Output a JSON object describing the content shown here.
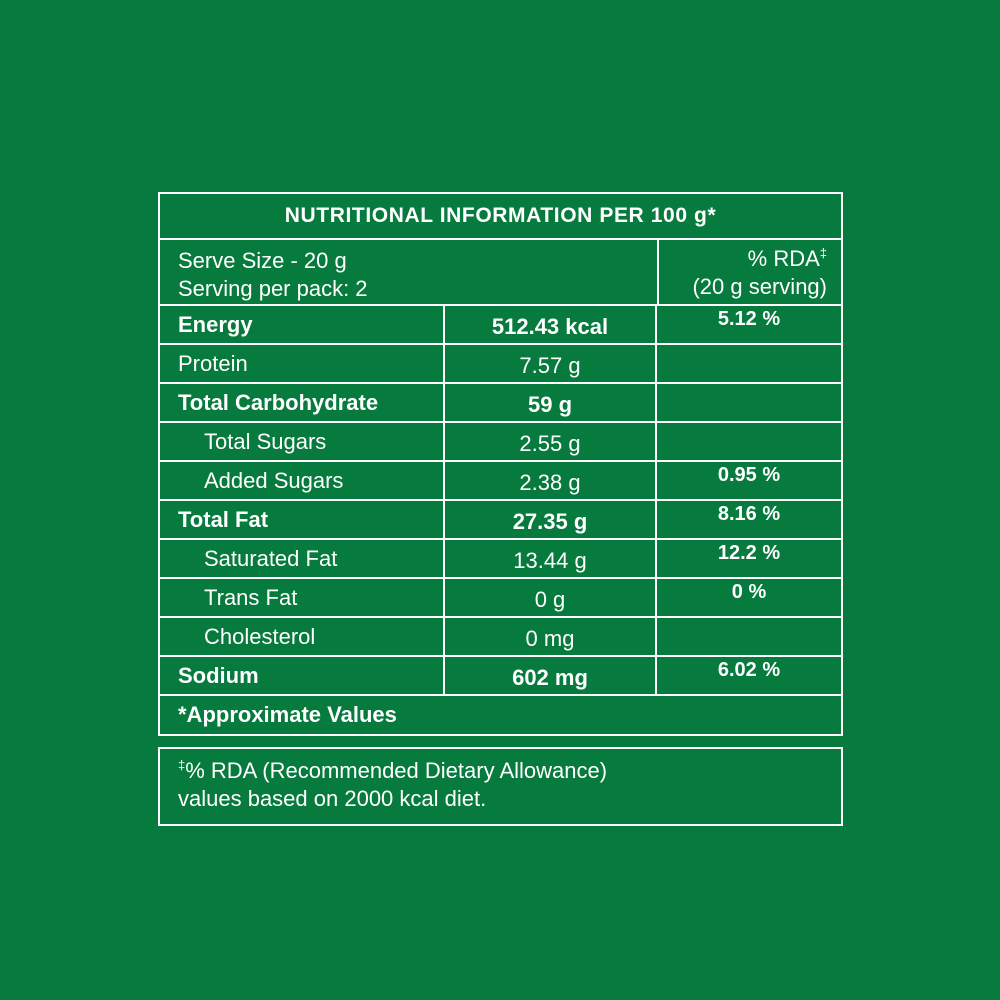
{
  "colors": {
    "background": "#077a3e",
    "border": "#ffffff",
    "text": "#ffffff"
  },
  "table": {
    "title": "NUTRITIONAL INFORMATION PER 100 g*",
    "serve_info": {
      "line1": "Serve Size - 20 g",
      "line2": "Serving per pack: 2"
    },
    "rda_header": {
      "label": "% RDA",
      "mark": "‡",
      "sub": "(20 g serving)"
    },
    "rows": [
      {
        "name": "Energy",
        "amount": "512.43 kcal",
        "rda": "5.12 %"
      },
      {
        "name": "Protein",
        "amount": "7.57 g",
        "rda": ""
      },
      {
        "name": "Total Carbohydrate",
        "amount": "59 g",
        "rda": ""
      },
      {
        "name": "Total Sugars",
        "amount": "2.55 g",
        "rda": ""
      },
      {
        "name": "Added Sugars",
        "amount": "2.38 g",
        "rda": "0.95 %"
      },
      {
        "name": "Total Fat",
        "amount": "27.35 g",
        "rda": "8.16 %"
      },
      {
        "name": "Saturated Fat",
        "amount": "13.44 g",
        "rda": "12.2 %"
      },
      {
        "name": "Trans Fat",
        "amount": "0 g",
        "rda": "0 %"
      },
      {
        "name": "Cholesterol",
        "amount": "0 mg",
        "rda": ""
      },
      {
        "name": "Sodium",
        "amount": "602 mg",
        "rda": "6.02 %"
      }
    ],
    "footer": "*Approximate Values"
  },
  "footnote": {
    "mark": "‡",
    "line1": "% RDA (Recommended Dietary Allowance)",
    "line2": "values based on 2000 kcal diet."
  }
}
